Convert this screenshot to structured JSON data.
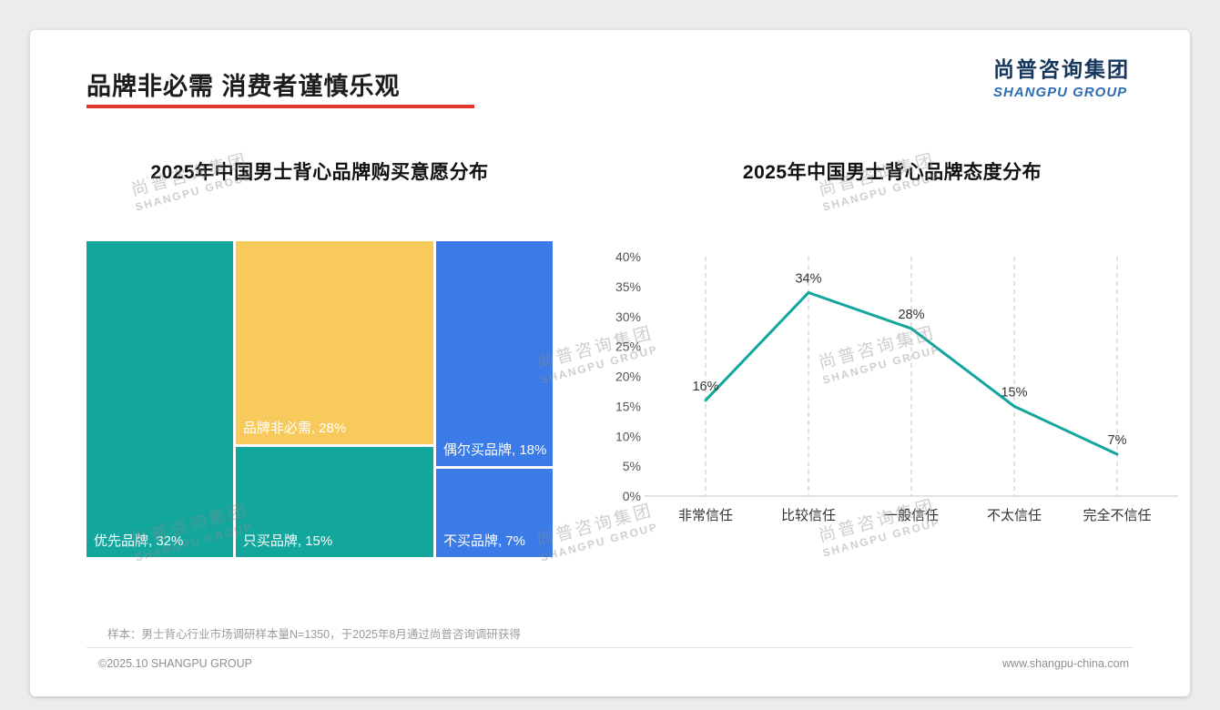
{
  "page": {
    "title": "品牌非必需 消费者谨慎乐观",
    "logo": {
      "cn": "尚普咨询集团",
      "en": "SHANGPU GROUP"
    },
    "watermark": {
      "cn": "尚普咨询集团",
      "en": "SHANGPU GROUP"
    },
    "sample_note": "样本：男士背心行业市场调研样本量N=1350，于2025年8月通过尚普咨询调研获得",
    "footer_left": "©2025.10 SHANGPU GROUP",
    "footer_right": "www.shangpu-china.com"
  },
  "colors": {
    "teal": "#12A69D",
    "yellow": "#F8CA5C",
    "blue": "#3A7BE8",
    "accent_red": "#E0392D",
    "logo_navy": "#17365D",
    "logo_blue": "#2E6CB5"
  },
  "chart_data": [
    {
      "type": "treemap",
      "title": "2025年中国男士背心品牌购买意愿分布",
      "unit": "%",
      "items": [
        {
          "label": "优先品牌",
          "value": 32,
          "display": "优先品牌, 32%",
          "color": "teal"
        },
        {
          "label": "品牌非必需",
          "value": 28,
          "display": "品牌非必需, 28%",
          "color": "yellow"
        },
        {
          "label": "偶尔买品牌",
          "value": 18,
          "display": "偶尔买品牌, 18%",
          "color": "blue"
        },
        {
          "label": "只买品牌",
          "value": 15,
          "display": "只买品牌, 15%",
          "color": "teal"
        },
        {
          "label": "不买品牌",
          "value": 7,
          "display": "不买品牌, 7%",
          "color": "blue"
        }
      ],
      "columns": [
        [
          0
        ],
        [
          1,
          3
        ],
        [
          2,
          4
        ]
      ]
    },
    {
      "type": "line",
      "title": "2025年中国男士背心品牌态度分布",
      "categories": [
        "非常信任",
        "比较信任",
        "一般信任",
        "不太信任",
        "完全不信任"
      ],
      "values": [
        16,
        34,
        28,
        15,
        7
      ],
      "point_labels": [
        "16%",
        "34%",
        "28%",
        "15%",
        "7%"
      ],
      "ylim": [
        0,
        40
      ],
      "ytick_step": 5,
      "yticks": [
        "0%",
        "5%",
        "10%",
        "15%",
        "20%",
        "25%",
        "30%",
        "35%",
        "40%"
      ],
      "grid": "vertical-dashed",
      "legend": "none",
      "line_color": "#12A69D"
    }
  ]
}
